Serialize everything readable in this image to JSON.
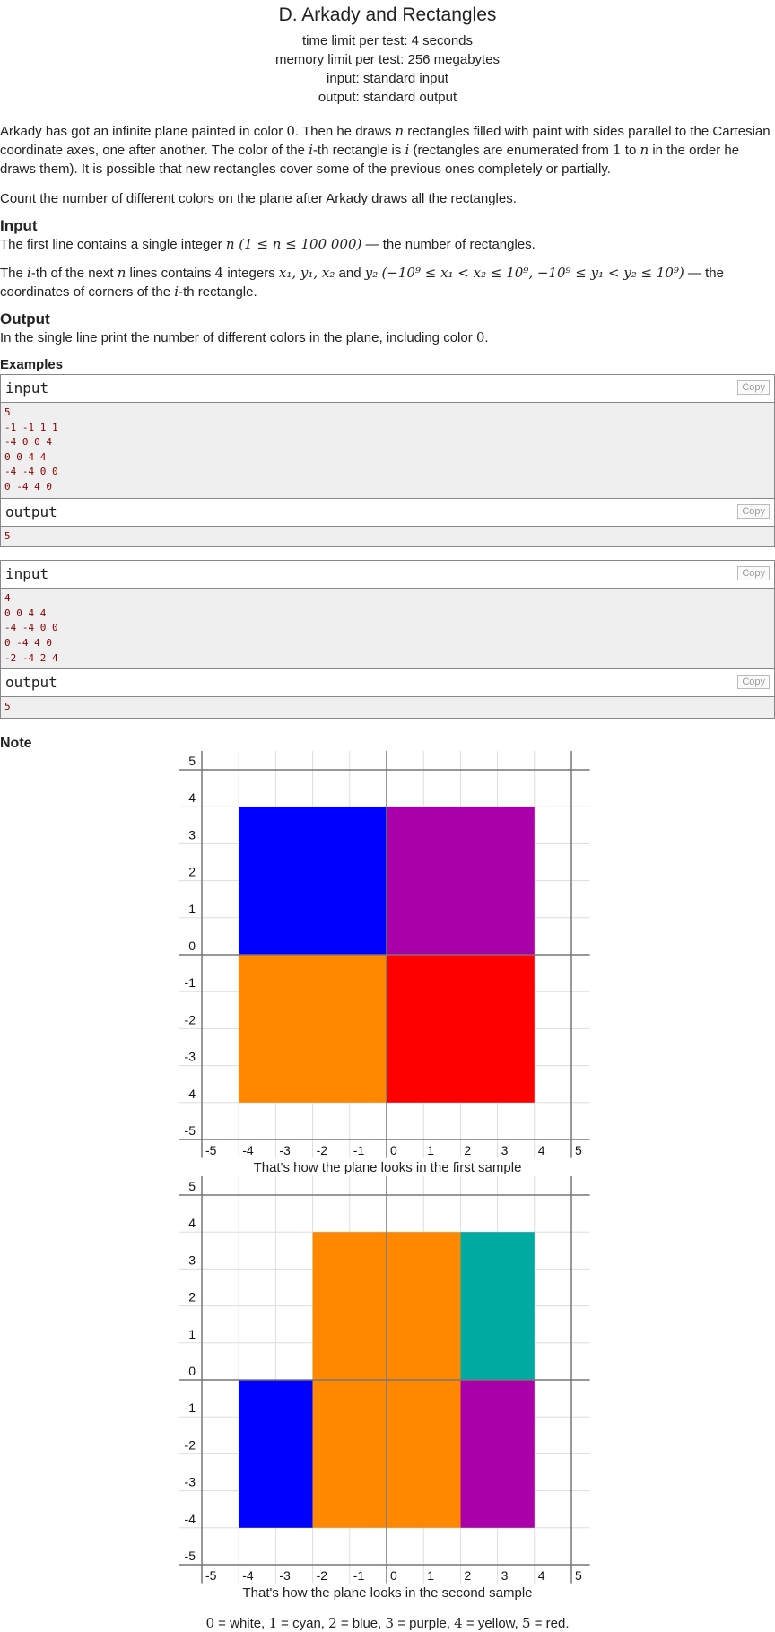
{
  "header": {
    "title": "D. Arkady and Rectangles",
    "time_limit": "time limit per test: 4 seconds",
    "memory_limit": "memory limit per test: 256 megabytes",
    "input": "input: standard input",
    "output": "output: standard output"
  },
  "statement": {
    "p1_a": "Arkady has got an infinite plane painted in color ",
    "p1_zero": "0",
    "p1_b": ". Then he draws ",
    "p1_n": "n",
    "p1_c": " rectangles filled with paint with sides parallel to the Cartesian coordinate axes, one after another. The color of the ",
    "p1_i": "i",
    "p1_d": "-th rectangle is ",
    "p1_i2": "i",
    "p1_e": " (rectangles are enumerated from ",
    "p1_one": "1",
    "p1_f": " to ",
    "p1_n2": "n",
    "p1_g": " in the order he draws them). It is possible that new rectangles cover some of the previous ones completely or partially.",
    "p2": "Count the number of different colors on the plane after Arkady draws all the rectangles."
  },
  "input_section": {
    "heading": "Input",
    "l1_a": "The first line contains a single integer ",
    "l1_math": "n (1 ≤ n ≤ 100 000)",
    "l1_b": " — the number of rectangles.",
    "l2_a": "The ",
    "l2_i": "i",
    "l2_b": "-th of the next ",
    "l2_n": "n",
    "l2_c": " lines contains ",
    "l2_four": "4",
    "l2_d": " integers ",
    "l2_vars": "x₁, y₁, x₂",
    "l2_and": " and ",
    "l2_y2": "y₂",
    "l2_sp": " ",
    "l2_cons": "(−10⁹ ≤ x₁ < x₂ ≤ 10⁹, −10⁹ ≤ y₁ < y₂ ≤ 10⁹)",
    "l2_e": " — the coordinates of corners of the ",
    "l2_i2": "i",
    "l2_f": "-th rectangle."
  },
  "output_section": {
    "heading": "Output",
    "text_a": "In the single line print the number of different colors in the plane, including color ",
    "text_zero": "0",
    "text_b": "."
  },
  "examples": {
    "heading": "Examples",
    "input_label": "input",
    "output_label": "output",
    "copy_label": "Copy",
    "ex1_input": "5\n-1 -1 1 1\n-4 0 0 4\n0 0 4 4\n-4 -4 0 0\n0 -4 4 0",
    "ex1_output": "5",
    "ex2_input": "4\n0 0 4 4\n-4 -4 0 0\n0 -4 4 0\n-2 -4 2 4",
    "ex2_output": "5"
  },
  "note": {
    "heading": "Note",
    "caption1": "That's how the plane looks in the first sample",
    "caption2": "That's how the plane looks in the second sample",
    "legend": [
      {
        "num": "0",
        "text": " = white, "
      },
      {
        "num": "1",
        "text": " = cyan, "
      },
      {
        "num": "2",
        "text": " = blue, "
      },
      {
        "num": "3",
        "text": " = purple, "
      },
      {
        "num": "4",
        "text": " = yellow, "
      },
      {
        "num": "5",
        "text": " = red."
      }
    ]
  },
  "colors": {
    "blue": "#0000ff",
    "purple": "#aa00aa",
    "orange": "#ff8800",
    "red": "#ff0000",
    "teal": "#00aaa0"
  },
  "plots": [
    {
      "x_ticks": [
        "-5",
        "-4",
        "-3",
        "-2",
        "-1",
        "0",
        "1",
        "2",
        "3",
        "4",
        "5"
      ],
      "y_ticks": [
        "5",
        "4",
        "3",
        "2",
        "1",
        "0",
        "-1",
        "-2",
        "-3",
        "-4",
        "-5"
      ],
      "rects": [
        {
          "x1": -4,
          "y1": 0,
          "x2": 0,
          "y2": 4,
          "color": "#0000ff"
        },
        {
          "x1": 0,
          "y1": 0,
          "x2": 4,
          "y2": 4,
          "color": "#aa00aa"
        },
        {
          "x1": -4,
          "y1": -4,
          "x2": 0,
          "y2": 0,
          "color": "#ff8800"
        },
        {
          "x1": 0,
          "y1": -4,
          "x2": 4,
          "y2": 0,
          "color": "#ff0000"
        }
      ]
    },
    {
      "x_ticks": [
        "-5",
        "-4",
        "-3",
        "-2",
        "-1",
        "0",
        "1",
        "2",
        "3",
        "4",
        "5"
      ],
      "y_ticks": [
        "5",
        "4",
        "3",
        "2",
        "1",
        "0",
        "-1",
        "-2",
        "-3",
        "-4",
        "-5"
      ],
      "rects": [
        {
          "x1": 2,
          "y1": 0,
          "x2": 4,
          "y2": 4,
          "color": "#00aaa0"
        },
        {
          "x1": -4,
          "y1": -4,
          "x2": -2,
          "y2": 0,
          "color": "#0000ff"
        },
        {
          "x1": 2,
          "y1": -4,
          "x2": 4,
          "y2": 0,
          "color": "#aa00aa"
        },
        {
          "x1": -2,
          "y1": -4,
          "x2": 2,
          "y2": 4,
          "color": "#ff8800"
        }
      ]
    }
  ]
}
